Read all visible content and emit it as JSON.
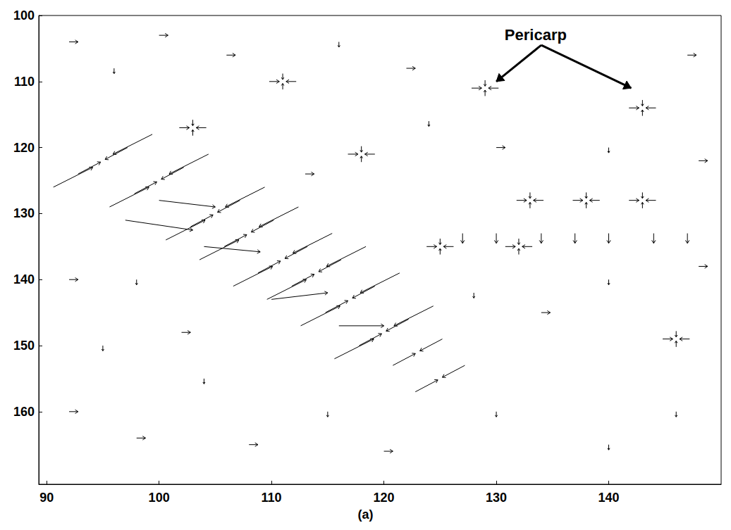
{
  "chart_data": {
    "type": "quiver",
    "color": "#000000",
    "xlim": [
      89.3,
      150
    ],
    "ylim": [
      100,
      171
    ],
    "xticks": [
      90,
      100,
      110,
      120,
      130,
      140
    ],
    "yticks": [
      100,
      110,
      120,
      130,
      140,
      150,
      160
    ],
    "grid": false,
    "caption": "(a)",
    "annotations": [
      {
        "text": "Pericarp",
        "x": 134,
        "y": 103,
        "arrows": [
          [
            130,
            110
          ],
          [
            142,
            111
          ]
        ]
      }
    ],
    "vectors": [
      [
        97.2,
        120,
        -2,
        1.8
      ],
      [
        102.2,
        123,
        -2,
        1.8
      ],
      [
        107.2,
        128,
        -2,
        1.8
      ],
      [
        110.2,
        131,
        -2,
        1.8
      ],
      [
        113.2,
        135,
        -2,
        1.8
      ],
      [
        116.2,
        137,
        -2,
        1.8
      ],
      [
        119.2,
        141,
        -2,
        1.8
      ],
      [
        122.2,
        146,
        -2,
        1.8
      ],
      [
        125.2,
        149,
        -2,
        1.8
      ],
      [
        127.2,
        153,
        -2,
        1.8
      ],
      [
        92.8,
        124,
        2,
        -1.8
      ],
      [
        97.8,
        127,
        2,
        -1.8
      ],
      [
        102.8,
        132,
        2,
        -1.8
      ],
      [
        105.8,
        135,
        2,
        -1.8
      ],
      [
        108.8,
        139,
        2,
        -1.8
      ],
      [
        111.8,
        141,
        2,
        -1.8
      ],
      [
        114.8,
        145,
        2,
        -1.8
      ],
      [
        117.8,
        150,
        2,
        -1.8
      ],
      [
        120.8,
        153,
        2,
        -1.8
      ],
      [
        122.8,
        157,
        2,
        -1.8
      ],
      [
        99.4,
        118,
        -3.5,
        3
      ],
      [
        104.4,
        121,
        -3.5,
        3
      ],
      [
        109.4,
        126,
        -3.5,
        3
      ],
      [
        112.4,
        129,
        -3.5,
        3
      ],
      [
        115.4,
        133,
        -3.5,
        3
      ],
      [
        118.4,
        135,
        -3.5,
        3
      ],
      [
        121.4,
        139,
        -3.5,
        3
      ],
      [
        124.4,
        144,
        -3.5,
        3
      ],
      [
        90.6,
        126,
        3.5,
        -3
      ],
      [
        95.6,
        129,
        3.5,
        -3
      ],
      [
        100.6,
        134,
        3.5,
        -3
      ],
      [
        103.6,
        137,
        3.5,
        -3
      ],
      [
        106.6,
        141,
        3.5,
        -3
      ],
      [
        109.6,
        143,
        3.5,
        -3
      ],
      [
        112.6,
        147,
        3.5,
        -3
      ],
      [
        115.6,
        152,
        3.5,
        -3
      ],
      [
        97,
        131,
        6,
        1.5
      ],
      [
        100,
        128,
        5,
        1
      ],
      [
        104,
        135,
        5,
        0.8
      ],
      [
        110,
        143,
        5,
        -1
      ],
      [
        116,
        147,
        4,
        0
      ],
      [
        127.8,
        111,
        0.9,
        0
      ],
      [
        130.2,
        111,
        -0.9,
        0
      ],
      [
        129,
        109.8,
        0,
        0.9
      ],
      [
        129,
        112.2,
        0,
        -0.9
      ],
      [
        141.8,
        114,
        0.9,
        0
      ],
      [
        144.2,
        114,
        -0.9,
        0
      ],
      [
        143,
        112.8,
        0,
        0.9
      ],
      [
        143,
        115.2,
        0,
        -0.9
      ],
      [
        109.8,
        110,
        0.9,
        0
      ],
      [
        112.2,
        110,
        -0.9,
        0
      ],
      [
        111,
        108.8,
        0,
        0.9
      ],
      [
        111,
        111.2,
        0,
        -0.9
      ],
      [
        101.8,
        117,
        0.9,
        0
      ],
      [
        104.2,
        117,
        -0.9,
        0
      ],
      [
        103,
        115.8,
        0,
        0.9
      ],
      [
        103,
        118.2,
        0,
        -0.9
      ],
      [
        136.8,
        128,
        0.9,
        0
      ],
      [
        139.2,
        128,
        -0.9,
        0
      ],
      [
        138,
        126.8,
        0,
        0.9
      ],
      [
        138,
        129.2,
        0,
        -0.9
      ],
      [
        131.8,
        128,
        0.9,
        0
      ],
      [
        134.2,
        128,
        -0.9,
        0
      ],
      [
        133,
        126.8,
        0,
        0.9
      ],
      [
        133,
        129.2,
        0,
        -0.9
      ],
      [
        141.8,
        128,
        0.9,
        0
      ],
      [
        144.2,
        128,
        -0.9,
        0
      ],
      [
        143,
        126.8,
        0,
        0.9
      ],
      [
        143,
        129.2,
        0,
        -0.9
      ],
      [
        130.8,
        135,
        0.9,
        0
      ],
      [
        133.2,
        135,
        -0.9,
        0
      ],
      [
        132,
        133.8,
        0,
        0.9
      ],
      [
        132,
        136.2,
        0,
        -0.9
      ],
      [
        144.8,
        149,
        0.9,
        0
      ],
      [
        147.2,
        149,
        -0.9,
        0
      ],
      [
        146,
        147.8,
        0,
        0.9
      ],
      [
        146,
        150.2,
        0,
        -0.9
      ],
      [
        116.8,
        121,
        0.9,
        0
      ],
      [
        119.2,
        121,
        -0.9,
        0
      ],
      [
        118,
        119.8,
        0,
        0.9
      ],
      [
        118,
        122.2,
        0,
        -0.9
      ],
      [
        123.8,
        135,
        0.9,
        0
      ],
      [
        126.2,
        135,
        -0.9,
        0
      ],
      [
        125,
        133.8,
        0,
        0.9
      ],
      [
        125,
        136.2,
        0,
        -0.9
      ],
      [
        127,
        133,
        0,
        1.5
      ],
      [
        130,
        133,
        0,
        1.5
      ],
      [
        134,
        133,
        0,
        1.5
      ],
      [
        137,
        133,
        0,
        1.5
      ],
      [
        140,
        133,
        0,
        1.5
      ],
      [
        144,
        133,
        0,
        1.5
      ],
      [
        147,
        133,
        0,
        1.5
      ],
      [
        92,
        104,
        0.8,
        0
      ],
      [
        96,
        108,
        0,
        0.8
      ],
      [
        100,
        103,
        0.8,
        0
      ],
      [
        106,
        106,
        0.8,
        0
      ],
      [
        116,
        104,
        0,
        0.8
      ],
      [
        122,
        108,
        0.8,
        0
      ],
      [
        147,
        106,
        0.8,
        0
      ],
      [
        92,
        140,
        0.8,
        0
      ],
      [
        95,
        150,
        0,
        0.8
      ],
      [
        92,
        160,
        0.8,
        0
      ],
      [
        98,
        164,
        0.8,
        0
      ],
      [
        104,
        155,
        0,
        0.8
      ],
      [
        108,
        165,
        0.8,
        0
      ],
      [
        115,
        160,
        0,
        0.8
      ],
      [
        120,
        166,
        0.8,
        0
      ],
      [
        130,
        160,
        0,
        0.8
      ],
      [
        134,
        145,
        0.8,
        0
      ],
      [
        140,
        165,
        0,
        0.8
      ],
      [
        146,
        160,
        0,
        0.8
      ],
      [
        148,
        138,
        0.8,
        0
      ],
      [
        140,
        140,
        0,
        0.8
      ],
      [
        130,
        120,
        0.8,
        0
      ],
      [
        140,
        120,
        0,
        0.8
      ],
      [
        148,
        122,
        0.8,
        0
      ],
      [
        124,
        116,
        0,
        0.8
      ],
      [
        113,
        124,
        0.8,
        0
      ],
      [
        98,
        140,
        0,
        0.8
      ],
      [
        102,
        148,
        0.8,
        0
      ],
      [
        128,
        142,
        0,
        0.8
      ]
    ]
  }
}
